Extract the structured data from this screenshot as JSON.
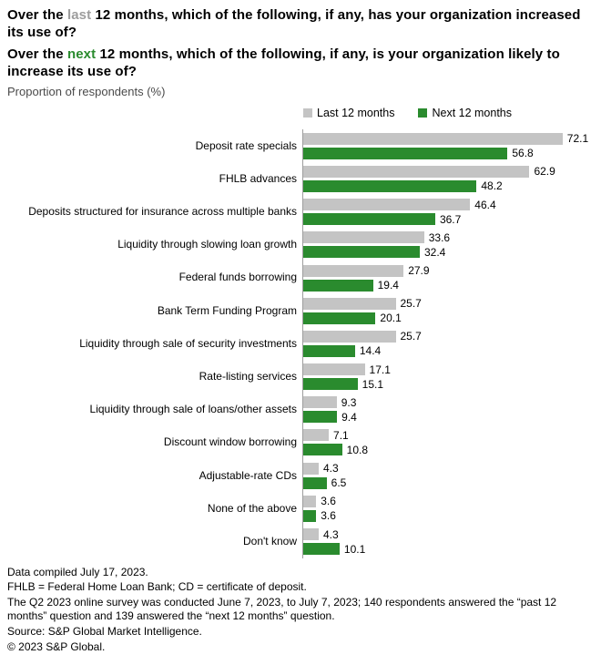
{
  "title": {
    "q1_prefix": "Over the ",
    "q1_highlight": "last",
    "q1_suffix": " 12 months, which of the following, if any, has your organization increased its use of?",
    "q2_prefix": "Over the ",
    "q2_highlight": "next",
    "q2_suffix": " 12 months, which of the following, if any, is your organization likely to increase its use of?"
  },
  "subtitle": "Proportion of respondents (%)",
  "legend": [
    {
      "label": "Last 12 months",
      "color": "#c4c4c4"
    },
    {
      "label": "Next 12 months",
      "color": "#2a8b2e"
    }
  ],
  "colors": {
    "bar_last": "#c4c4c4",
    "bar_next": "#2a8b2e",
    "highlight_last": "#9d9d9d",
    "highlight_next": "#2a8b2e",
    "axis_line": "#9e9e9e"
  },
  "chart_data": {
    "type": "bar",
    "orientation": "horizontal",
    "title": "Over the last/next 12 months, which of the following, if any, has your organization increased / is likely to increase its use of?",
    "xlabel": "Proportion of respondents (%)",
    "ylabel": "",
    "xlim": [
      0,
      80
    ],
    "grid": false,
    "legend_position": "top",
    "value_labels": true,
    "categories": [
      "Deposit rate specials",
      "FHLB advances",
      "Deposits structured for insurance across multiple banks",
      "Liquidity through slowing loan growth",
      "Federal funds borrowing",
      "Bank Term Funding Program",
      "Liquidity through sale of security investments",
      "Rate-listing services",
      "Liquidity through sale of loans/other assets",
      "Discount window borrowing",
      "Adjustable-rate CDs",
      "None of the above",
      "Don't know"
    ],
    "series": [
      {
        "name": "Last 12 months",
        "color": "#c4c4c4",
        "values": [
          72.1,
          62.9,
          46.4,
          33.6,
          27.9,
          25.7,
          25.7,
          17.1,
          9.3,
          7.1,
          4.3,
          3.6,
          4.3
        ]
      },
      {
        "name": "Next 12 months",
        "color": "#2a8b2e",
        "values": [
          56.8,
          48.2,
          36.7,
          32.4,
          19.4,
          20.1,
          14.4,
          15.1,
          9.4,
          10.8,
          6.5,
          3.6,
          10.1
        ]
      }
    ]
  },
  "footnotes": [
    "Data compiled July 17, 2023.",
    "FHLB = Federal Home Loan Bank; CD = certificate of deposit.",
    "The Q2 2023 online survey was conducted June 7, 2023, to July 7, 2023; 140 respondents answered the “past 12 months” question and 139 answered the “next 12 months” question.",
    "Source: S&P Global Market Intelligence.",
    "© 2023 S&P Global."
  ]
}
